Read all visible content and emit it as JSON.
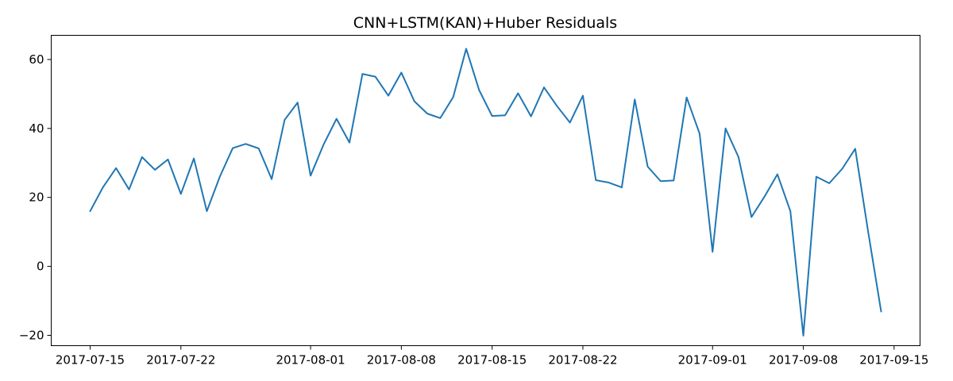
{
  "chart_data": {
    "type": "line",
    "title": "CNN+LSTM(KAN)+Huber Residuals",
    "xlabel": "",
    "ylabel": "",
    "x_axis_type": "date",
    "xlim": [
      "2017-07-12",
      "2017-09-17"
    ],
    "ylim": [
      -23,
      67
    ],
    "grid": false,
    "x_ticks": [
      "2017-07-15",
      "2017-07-22",
      "2017-08-01",
      "2017-08-08",
      "2017-08-15",
      "2017-08-22",
      "2017-09-01",
      "2017-09-08",
      "2017-09-15"
    ],
    "y_ticks": [
      -20,
      0,
      20,
      40,
      60
    ],
    "colors": {
      "series": "#1f77b4"
    },
    "series": [
      {
        "name": "",
        "x": [
          "2017-07-15",
          "2017-07-16",
          "2017-07-17",
          "2017-07-18",
          "2017-07-19",
          "2017-07-20",
          "2017-07-21",
          "2017-07-22",
          "2017-07-23",
          "2017-07-24",
          "2017-07-25",
          "2017-07-26",
          "2017-07-27",
          "2017-07-28",
          "2017-07-29",
          "2017-07-30",
          "2017-07-31",
          "2017-08-01",
          "2017-08-02",
          "2017-08-03",
          "2017-08-04",
          "2017-08-05",
          "2017-08-06",
          "2017-08-07",
          "2017-08-08",
          "2017-08-09",
          "2017-08-10",
          "2017-08-11",
          "2017-08-12",
          "2017-08-13",
          "2017-08-14",
          "2017-08-15",
          "2017-08-16",
          "2017-08-17",
          "2017-08-18",
          "2017-08-19",
          "2017-08-20",
          "2017-08-21",
          "2017-08-22",
          "2017-08-23",
          "2017-08-24",
          "2017-08-25",
          "2017-08-26",
          "2017-08-27",
          "2017-08-28",
          "2017-08-29",
          "2017-08-30",
          "2017-08-31",
          "2017-09-01",
          "2017-09-02",
          "2017-09-03",
          "2017-09-04",
          "2017-09-05",
          "2017-09-06",
          "2017-09-07",
          "2017-09-08",
          "2017-09-09",
          "2017-09-10",
          "2017-09-11",
          "2017-09-12",
          "2017-09-13",
          "2017-09-14"
        ],
        "values": [
          16.0,
          23.0,
          28.5,
          22.3,
          31.7,
          28.0,
          31.0,
          21.0,
          31.3,
          16.0,
          26.0,
          34.3,
          35.5,
          34.2,
          25.3,
          42.5,
          47.5,
          26.3,
          35.3,
          42.8,
          35.9,
          55.8,
          55.0,
          49.5,
          56.2,
          47.9,
          44.3,
          43.0,
          49.1,
          63.1,
          51.1,
          43.6,
          43.8,
          50.2,
          43.5,
          51.9,
          46.5,
          41.7,
          49.5,
          25.0,
          24.3,
          22.9,
          48.4,
          28.9,
          24.7,
          24.9,
          49.0,
          38.5,
          4.2,
          40.0,
          31.7,
          14.3,
          20.2,
          26.7,
          16.0,
          -20.1,
          26.0,
          24.1,
          28.3,
          34.1,
          10.0,
          -13.1
        ]
      }
    ]
  }
}
